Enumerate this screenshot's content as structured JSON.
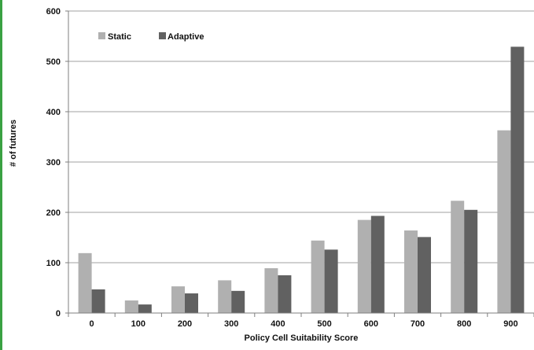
{
  "chart_data": {
    "type": "bar",
    "title": "",
    "xlabel": "Policy Cell Suitability Score",
    "ylabel": "# of futures",
    "categories": [
      "0",
      "100",
      "200",
      "300",
      "400",
      "500",
      "600",
      "700",
      "800",
      "900"
    ],
    "series": [
      {
        "name": "Static",
        "color": "#b0b0b0",
        "values": [
          119,
          25,
          53,
          65,
          89,
          144,
          185,
          164,
          223,
          363
        ]
      },
      {
        "name": "Adaptive",
        "color": "#616161",
        "values": [
          47,
          17,
          39,
          44,
          75,
          126,
          193,
          151,
          205,
          529
        ]
      }
    ],
    "ylim": [
      0,
      600
    ],
    "yticks": [
      "0",
      "100",
      "200",
      "300",
      "400",
      "500",
      "600"
    ],
    "grid": true,
    "legend_position": "top-left"
  },
  "colors": {
    "accent_bar": "#3aa142",
    "gridline": "#a0a0a0",
    "axis": "#7f7f7f"
  }
}
